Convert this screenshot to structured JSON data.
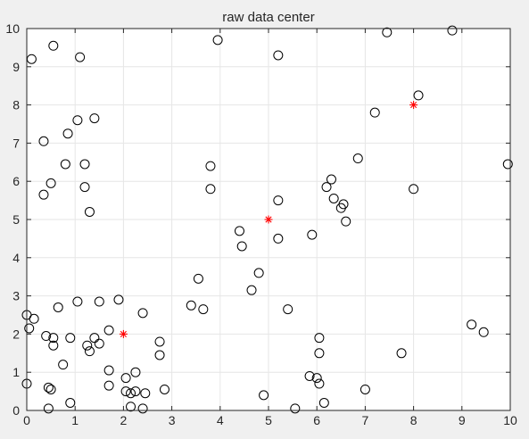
{
  "chart_data": {
    "type": "scatter",
    "title": "raw data center",
    "xlabel": "",
    "ylabel": "",
    "xlim": [
      0,
      10
    ],
    "ylim": [
      0,
      10
    ],
    "xticks": [
      "0",
      "1",
      "2",
      "3",
      "4",
      "5",
      "6",
      "7",
      "8",
      "9",
      "10"
    ],
    "yticks": [
      "0",
      "1",
      "2",
      "3",
      "4",
      "5",
      "6",
      "7",
      "8",
      "9",
      "10"
    ],
    "grid": true,
    "legend": "none",
    "colors": {
      "points": "#000000",
      "centers": "#ff0000",
      "grid": "#e6e6e6",
      "axes": "#262626",
      "plot_bg": "#ffffff",
      "figure_bg": "#f0f0f0"
    },
    "series": [
      {
        "marker": "circle",
        "points": [
          [
            0.1,
            9.2
          ],
          [
            0.55,
            9.55
          ],
          [
            1.1,
            9.25
          ],
          [
            3.95,
            9.7
          ],
          [
            5.2,
            9.3
          ],
          [
            7.45,
            9.9
          ],
          [
            8.8,
            9.95
          ],
          [
            8.1,
            8.25
          ],
          [
            7.2,
            7.8
          ],
          [
            1.05,
            7.6
          ],
          [
            1.4,
            7.65
          ],
          [
            0.35,
            7.05
          ],
          [
            0.85,
            7.25
          ],
          [
            0.8,
            6.45
          ],
          [
            1.2,
            6.45
          ],
          [
            6.85,
            6.6
          ],
          [
            3.8,
            6.4
          ],
          [
            9.95,
            6.45
          ],
          [
            0.5,
            5.95
          ],
          [
            0.35,
            5.65
          ],
          [
            1.2,
            5.85
          ],
          [
            3.8,
            5.8
          ],
          [
            6.2,
            5.85
          ],
          [
            6.3,
            6.05
          ],
          [
            6.35,
            5.55
          ],
          [
            6.55,
            5.4
          ],
          [
            6.5,
            5.3
          ],
          [
            6.6,
            4.95
          ],
          [
            5.2,
            5.5
          ],
          [
            8.0,
            5.8
          ],
          [
            1.3,
            5.2
          ],
          [
            4.4,
            4.7
          ],
          [
            4.45,
            4.3
          ],
          [
            5.2,
            4.5
          ],
          [
            5.9,
            4.6
          ],
          [
            4.8,
            3.6
          ],
          [
            4.65,
            3.15
          ],
          [
            3.55,
            3.45
          ],
          [
            3.4,
            2.75
          ],
          [
            3.65,
            2.65
          ],
          [
            5.4,
            2.65
          ],
          [
            1.05,
            2.85
          ],
          [
            1.5,
            2.85
          ],
          [
            1.9,
            2.9
          ],
          [
            0.65,
            2.7
          ],
          [
            2.4,
            2.55
          ],
          [
            0.0,
            2.5
          ],
          [
            0.15,
            2.4
          ],
          [
            0.05,
            2.15
          ],
          [
            0.4,
            1.95
          ],
          [
            0.55,
            1.9
          ],
          [
            0.55,
            1.7
          ],
          [
            0.9,
            1.9
          ],
          [
            1.4,
            1.9
          ],
          [
            1.7,
            2.1
          ],
          [
            1.25,
            1.7
          ],
          [
            1.3,
            1.55
          ],
          [
            1.5,
            1.75
          ],
          [
            2.75,
            1.8
          ],
          [
            2.75,
            1.45
          ],
          [
            6.05,
            1.9
          ],
          [
            6.05,
            1.5
          ],
          [
            7.75,
            1.5
          ],
          [
            9.2,
            2.25
          ],
          [
            9.45,
            2.05
          ],
          [
            0.75,
            1.2
          ],
          [
            1.7,
            1.05
          ],
          [
            1.7,
            0.65
          ],
          [
            2.25,
            1.0
          ],
          [
            0.0,
            0.7
          ],
          [
            0.45,
            0.6
          ],
          [
            0.5,
            0.55
          ],
          [
            0.9,
            0.2
          ],
          [
            0.45,
            0.05
          ],
          [
            2.05,
            0.85
          ],
          [
            2.05,
            0.5
          ],
          [
            2.15,
            0.45
          ],
          [
            2.25,
            0.5
          ],
          [
            2.45,
            0.45
          ],
          [
            2.15,
            0.1
          ],
          [
            2.4,
            0.05
          ],
          [
            2.85,
            0.55
          ],
          [
            4.9,
            0.4
          ],
          [
            5.55,
            0.05
          ],
          [
            5.85,
            0.9
          ],
          [
            6.0,
            0.85
          ],
          [
            6.05,
            0.7
          ],
          [
            6.15,
            0.2
          ],
          [
            7.0,
            0.55
          ]
        ]
      },
      {
        "marker": "asterisk",
        "points": [
          [
            2,
            2
          ],
          [
            5,
            5
          ],
          [
            8,
            8
          ]
        ]
      }
    ]
  }
}
